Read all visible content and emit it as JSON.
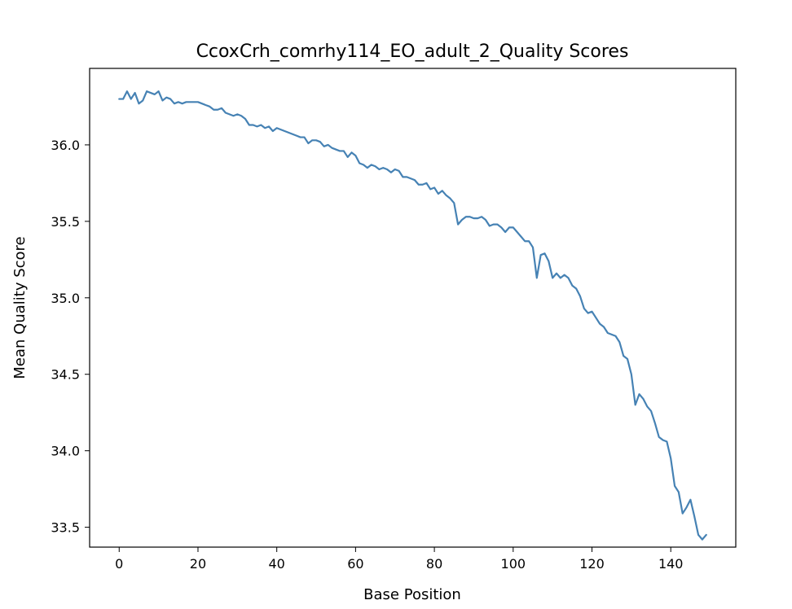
{
  "chart_data": {
    "type": "line",
    "title": "CcoxCrh_comrhy114_EO_adult_2_Quality Scores",
    "xlabel": "Base Position",
    "ylabel": "Mean Quality Score",
    "xlim": [
      -7.5,
      156.5
    ],
    "ylim": [
      33.37,
      36.5
    ],
    "xticks": [
      0,
      20,
      40,
      60,
      80,
      100,
      120,
      140
    ],
    "xtick_labels": [
      "0",
      "20",
      "40",
      "60",
      "80",
      "100",
      "120",
      "140"
    ],
    "yticks": [
      33.5,
      34.0,
      34.5,
      35.0,
      35.5,
      36.0
    ],
    "ytick_labels": [
      "33.5",
      "34.0",
      "34.5",
      "35.0",
      "35.5",
      "36.0"
    ],
    "grid": false,
    "legend": "none",
    "color": "#4682b4",
    "series": [
      {
        "x": [
          0,
          1,
          2,
          3,
          4,
          5,
          6,
          7,
          8,
          9,
          10,
          11,
          12,
          13,
          14,
          15,
          16,
          17,
          18,
          19,
          20,
          21,
          22,
          23,
          24,
          25,
          26,
          27,
          28,
          29,
          30,
          31,
          32,
          33,
          34,
          35,
          36,
          37,
          38,
          39,
          40,
          41,
          42,
          43,
          44,
          45,
          46,
          47,
          48,
          49,
          50,
          51,
          52,
          53,
          54,
          55,
          56,
          57,
          58,
          59,
          60,
          61,
          62,
          63,
          64,
          65,
          66,
          67,
          68,
          69,
          70,
          71,
          72,
          73,
          74,
          75,
          76,
          77,
          78,
          79,
          80,
          81,
          82,
          83,
          84,
          85,
          86,
          87,
          88,
          89,
          90,
          91,
          92,
          93,
          94,
          95,
          96,
          97,
          98,
          99,
          100,
          101,
          102,
          103,
          104,
          105,
          106,
          107,
          108,
          109,
          110,
          111,
          112,
          113,
          114,
          115,
          116,
          117,
          118,
          119,
          120,
          121,
          122,
          123,
          124,
          125,
          126,
          127,
          128,
          129,
          130,
          131,
          132,
          133,
          134,
          135,
          136,
          137,
          138,
          139,
          140,
          141,
          142,
          143,
          144,
          145,
          146,
          147,
          148,
          149
        ],
        "y": [
          36.3,
          36.3,
          36.35,
          36.3,
          36.34,
          36.27,
          36.29,
          36.35,
          36.34,
          36.33,
          36.35,
          36.29,
          36.31,
          36.3,
          36.27,
          36.28,
          36.27,
          36.28,
          36.28,
          36.28,
          36.28,
          36.27,
          36.26,
          36.25,
          36.23,
          36.23,
          36.24,
          36.21,
          36.2,
          36.19,
          36.2,
          36.19,
          36.17,
          36.13,
          36.13,
          36.12,
          36.13,
          36.11,
          36.12,
          36.09,
          36.11,
          36.1,
          36.09,
          36.08,
          36.07,
          36.06,
          36.05,
          36.05,
          36.01,
          36.03,
          36.03,
          36.02,
          35.99,
          36.0,
          35.98,
          35.97,
          35.96,
          35.96,
          35.92,
          35.95,
          35.93,
          35.88,
          35.87,
          35.85,
          35.87,
          35.86,
          35.84,
          35.85,
          35.84,
          35.82,
          35.84,
          35.83,
          35.79,
          35.79,
          35.78,
          35.77,
          35.74,
          35.74,
          35.75,
          35.71,
          35.72,
          35.68,
          35.7,
          35.67,
          35.65,
          35.62,
          35.48,
          35.51,
          35.53,
          35.53,
          35.52,
          35.52,
          35.53,
          35.51,
          35.47,
          35.48,
          35.48,
          35.46,
          35.43,
          35.46,
          35.46,
          35.43,
          35.4,
          35.37,
          35.37,
          35.33,
          35.13,
          35.28,
          35.29,
          35.24,
          35.13,
          35.16,
          35.13,
          35.15,
          35.13,
          35.08,
          35.06,
          35.01,
          34.93,
          34.9,
          34.91,
          34.87,
          34.83,
          34.81,
          34.77,
          34.76,
          34.75,
          34.71,
          34.62,
          34.6,
          34.5,
          34.3,
          34.37,
          34.34,
          34.29,
          34.26,
          34.18,
          34.09,
          34.07,
          34.06,
          33.95,
          33.77,
          33.73,
          33.59,
          33.63,
          33.68,
          33.57,
          33.45,
          33.42,
          33.45
        ]
      }
    ]
  }
}
